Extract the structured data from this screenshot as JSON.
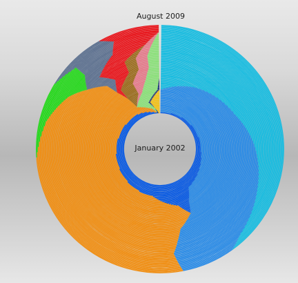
{
  "chart_data": {
    "type": "radial_stacked_share",
    "start_label": "January 2002",
    "end_label": "August 2009",
    "months": 92,
    "series": [
      {
        "key": "cyan",
        "color": "#17bce0"
      },
      {
        "key": "blue",
        "color": "#2a8be6"
      },
      {
        "key": "deep-blue",
        "color": "#0a5be3"
      },
      {
        "key": "orange",
        "color": "#f08e12"
      },
      {
        "key": "green",
        "color": "#24d81a"
      },
      {
        "key": "slate",
        "color": "#5b6f8e"
      },
      {
        "key": "red",
        "color": "#e8141a"
      },
      {
        "key": "olive",
        "color": "#9a6b1c"
      },
      {
        "key": "pink",
        "color": "#e47a8a"
      },
      {
        "key": "light-green",
        "color": "#8be07a"
      },
      {
        "key": "navy",
        "color": "#1a2f7a"
      },
      {
        "key": "yellow",
        "color": "#f2c21a"
      }
    ],
    "keyframes": [
      {
        "t": 0,
        "values": {
          "deep-blue": 100,
          "navy": 0.5,
          "yellow": 0.5
        }
      },
      {
        "t": 5,
        "values": {
          "deep-blue": 55,
          "blue": 22,
          "orange": 5,
          "yellow": 1.5,
          "light-green": 1
        }
      },
      {
        "t": 12,
        "values": {
          "deep-blue": 12,
          "blue": 38,
          "orange": 38,
          "yellow": 3,
          "light-green": 4,
          "navy": 0.5
        }
      },
      {
        "t": 24,
        "values": {
          "deep-blue": 3,
          "blue": 40,
          "orange": 44,
          "olive": 3,
          "light-green": 4,
          "pink": 1,
          "navy": 0.5
        }
      },
      {
        "t": 36,
        "values": {
          "blue": 34,
          "cyan": 8,
          "orange": 46,
          "olive": 3,
          "pink": 3,
          "light-green": 3,
          "red": 1
        }
      },
      {
        "t": 48,
        "values": {
          "blue": 28,
          "cyan": 18,
          "orange": 43,
          "olive": 2,
          "pink": 2,
          "light-green": 2,
          "red": 3,
          "slate": 2
        }
      },
      {
        "t": 60,
        "values": {
          "blue": 23,
          "cyan": 24,
          "orange": 39,
          "olive": 2,
          "pink": 2,
          "light-green": 2,
          "red": 5,
          "slate": 3
        }
      },
      {
        "t": 72,
        "values": {
          "blue": 16,
          "cyan": 30,
          "orange": 34,
          "green": 4,
          "pink": 1,
          "light-green": 1,
          "red": 5,
          "slate": 5
        }
      },
      {
        "t": 84,
        "values": {
          "blue": 9,
          "cyan": 36,
          "orange": 30,
          "green": 8,
          "red": 6,
          "slate": 6
        }
      },
      {
        "t": 91,
        "values": {
          "blue": 7,
          "cyan": 40,
          "orange": 27,
          "green": 10,
          "red": 8,
          "slate": 8
        }
      }
    ]
  }
}
